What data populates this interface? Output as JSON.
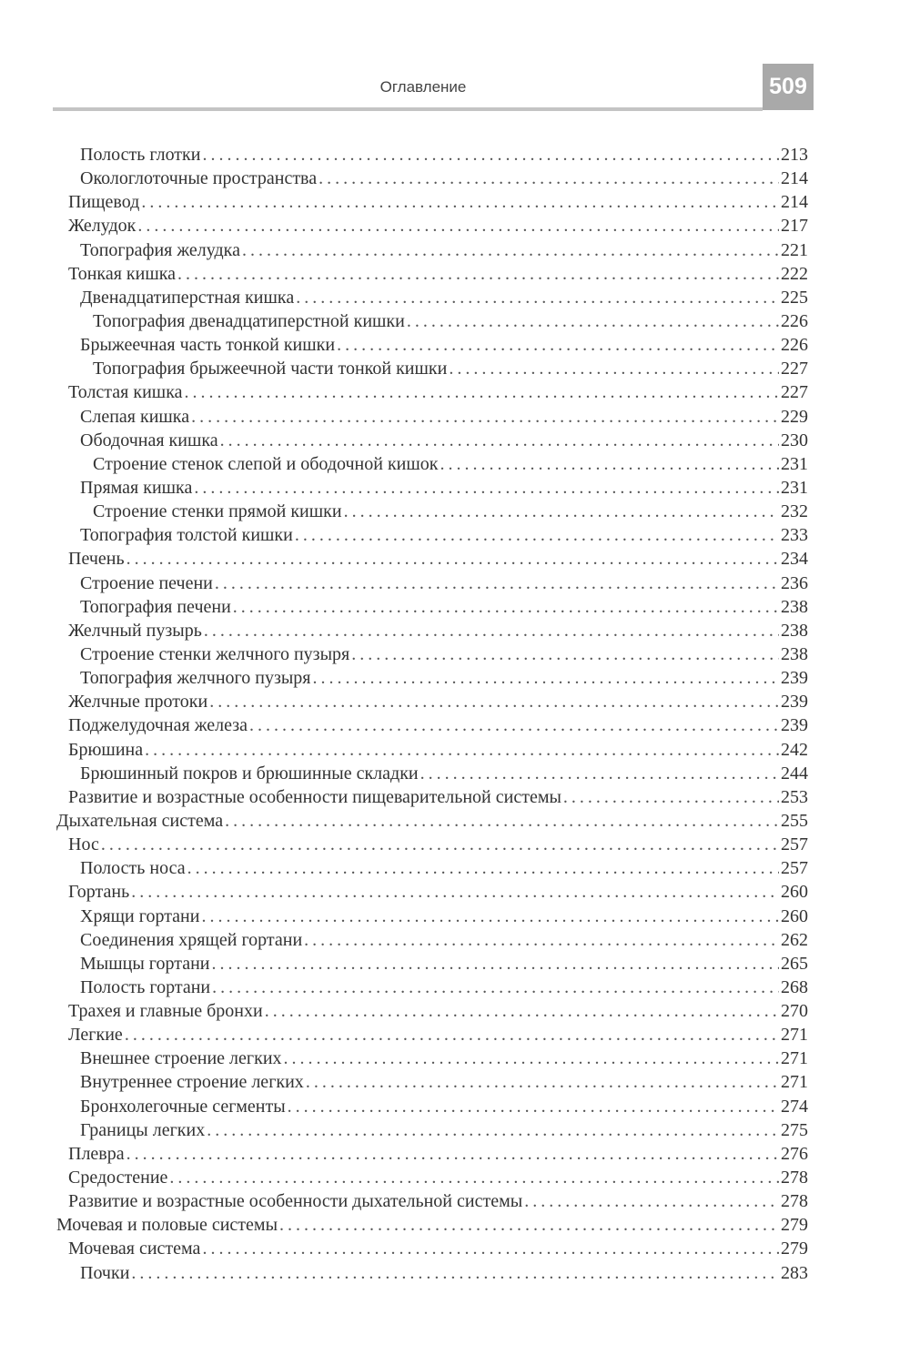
{
  "header": {
    "title": "Оглавление",
    "page_number": "509"
  },
  "entries": [
    {
      "title": "Полость глотки",
      "page": "213",
      "level": 2
    },
    {
      "title": "Окологлоточные пространства",
      "page": "214",
      "level": 2
    },
    {
      "title": "Пищевод",
      "page": "214",
      "level": 1
    },
    {
      "title": "Желудок",
      "page": "217",
      "level": 1
    },
    {
      "title": "Топография желудка",
      "page": "221",
      "level": 2
    },
    {
      "title": "Тонкая кишка",
      "page": "222",
      "level": 1
    },
    {
      "title": "Двенадцатиперстная кишка",
      "page": "225",
      "level": 2
    },
    {
      "title": "Топография двенадцатиперстной кишки",
      "page": "226",
      "level": 3
    },
    {
      "title": "Брыжеечная часть тонкой кишки",
      "page": "226",
      "level": 2
    },
    {
      "title": "Топография брыжеечной части тонкой кишки",
      "page": "227",
      "level": 3
    },
    {
      "title": "Толстая кишка",
      "page": "227",
      "level": 1
    },
    {
      "title": "Слепая кишка",
      "page": "229",
      "level": 2
    },
    {
      "title": "Ободочная кишка",
      "page": "230",
      "level": 2
    },
    {
      "title": "Строение стенок слепой и ободочной кишок",
      "page": "231",
      "level": 3
    },
    {
      "title": "Прямая кишка",
      "page": "231",
      "level": 2
    },
    {
      "title": "Строение стенки прямой кишки",
      "page": "232",
      "level": 3
    },
    {
      "title": "Топография толстой кишки",
      "page": "233",
      "level": 2
    },
    {
      "title": "Печень",
      "page": "234",
      "level": 1
    },
    {
      "title": "Строение печени",
      "page": "236",
      "level": 2
    },
    {
      "title": "Топография печени",
      "page": "238",
      "level": 2
    },
    {
      "title": "Желчный пузырь",
      "page": "238",
      "level": 1
    },
    {
      "title": "Строение стенки желчного пузыря",
      "page": "238",
      "level": 2
    },
    {
      "title": "Топография желчного пузыря",
      "page": "239",
      "level": 2
    },
    {
      "title": "Желчные протоки",
      "page": "239",
      "level": 1
    },
    {
      "title": "Поджелудочная железа",
      "page": "239",
      "level": 1
    },
    {
      "title": "Брюшина",
      "page": "242",
      "level": 1
    },
    {
      "title": "Брюшинный покров и брюшинные складки",
      "page": "244",
      "level": 2
    },
    {
      "title": "Развитие и возрастные особенности пищеварительной системы",
      "page": "253",
      "level": 1
    },
    {
      "title": "Дыхательная система",
      "page": "255",
      "level": 0
    },
    {
      "title": "Нос",
      "page": "257",
      "level": 1
    },
    {
      "title": "Полость носа",
      "page": "257",
      "level": 2
    },
    {
      "title": "Гортань",
      "page": "260",
      "level": 1
    },
    {
      "title": "Хрящи гортани",
      "page": "260",
      "level": 2
    },
    {
      "title": "Соединения хрящей гортани",
      "page": "262",
      "level": 2
    },
    {
      "title": "Мышцы гортани",
      "page": "265",
      "level": 2
    },
    {
      "title": "Полость гортани",
      "page": "268",
      "level": 2
    },
    {
      "title": "Трахея и главные бронхи",
      "page": "270",
      "level": 1
    },
    {
      "title": "Легкие",
      "page": "271",
      "level": 1
    },
    {
      "title": "Внешнее строение легких",
      "page": "271",
      "level": 2
    },
    {
      "title": "Внутреннее строение легких",
      "page": "271",
      "level": 2
    },
    {
      "title": "Бронхолегочные сегменты",
      "page": "274",
      "level": 2
    },
    {
      "title": "Границы легких",
      "page": "275",
      "level": 2
    },
    {
      "title": "Плевра",
      "page": "276",
      "level": 1
    },
    {
      "title": "Средостение",
      "page": "278",
      "level": 1
    },
    {
      "title": "Развитие и возрастные особенности дыхательной системы",
      "page": "278",
      "level": 1
    },
    {
      "title": "Мочевая и половые системы",
      "page": "279",
      "level": 0
    },
    {
      "title": "Мочевая система",
      "page": "279",
      "level": 1
    },
    {
      "title": "Почки",
      "page": "283",
      "level": 2
    }
  ]
}
